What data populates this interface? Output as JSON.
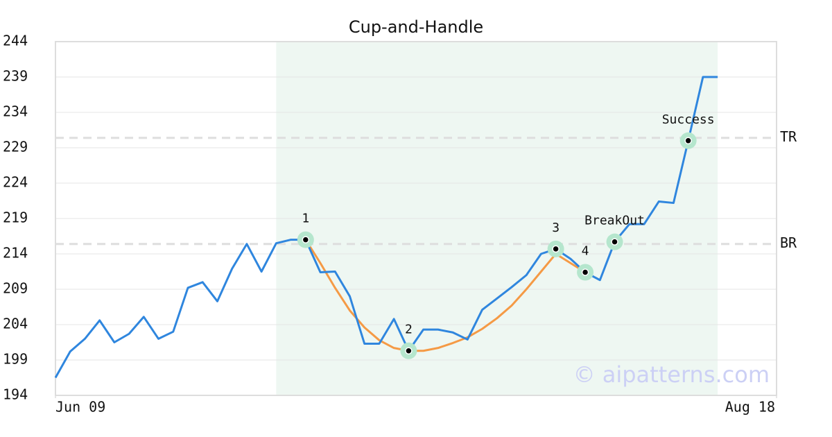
{
  "chart_data": {
    "type": "line",
    "title": "Cup-and-Handle",
    "x": [
      0,
      1,
      2,
      3,
      4,
      5,
      6,
      7,
      8,
      9,
      10,
      11,
      12,
      13,
      14,
      15,
      16,
      17,
      18,
      19,
      20,
      21,
      22,
      23,
      24,
      25,
      26,
      27,
      28,
      29,
      30,
      31,
      32,
      33,
      34,
      35,
      36,
      37,
      38,
      39,
      40,
      41,
      42,
      43,
      44,
      45
    ],
    "xlim": [
      0,
      49
    ],
    "xticks": [
      {
        "value": 0,
        "label": "Jun 09"
      },
      {
        "value": 49,
        "label": "Aug 18"
      }
    ],
    "ylim": [
      194,
      244
    ],
    "yticks": [
      194,
      199,
      204,
      209,
      214,
      219,
      224,
      229,
      234,
      239,
      244
    ],
    "grid": true,
    "series": [
      {
        "color": "#2f86de",
        "values": [
          196.5,
          200.2,
          202.0,
          204.6,
          201.5,
          202.7,
          205.1,
          202.0,
          203.0,
          209.2,
          210.0,
          207.3,
          211.9,
          215.4,
          211.5,
          215.5,
          216.0,
          216.0,
          211.4,
          211.5,
          208.0,
          201.3,
          201.3,
          204.8,
          200.3,
          203.3,
          203.3,
          202.9,
          201.9,
          206.1,
          207.7,
          209.3,
          211.0,
          214.0,
          214.7,
          213.3,
          211.4,
          210.3,
          215.7,
          218.2,
          218.2,
          221.4,
          221.2,
          230.0,
          239.0,
          239.0
        ]
      },
      {
        "color": "#f59a45",
        "values": [
          null,
          null,
          null,
          null,
          null,
          null,
          null,
          null,
          null,
          null,
          null,
          null,
          null,
          null,
          null,
          null,
          null,
          216.0,
          212.7,
          209.2,
          206.0,
          203.6,
          201.8,
          200.7,
          200.3,
          200.3,
          200.7,
          201.4,
          202.2,
          203.4,
          204.9,
          206.7,
          209.0,
          211.5,
          214.0,
          212.7,
          211.4,
          null,
          null,
          null,
          null,
          null,
          null,
          null,
          null,
          null
        ]
      }
    ],
    "highlight": [
      15,
      45
    ],
    "points": [
      {
        "x": 17,
        "y": 216.0,
        "label": "1"
      },
      {
        "x": 24,
        "y": 200.3,
        "label": "2"
      },
      {
        "x": 34,
        "y": 214.7,
        "label": "3"
      },
      {
        "x": 36,
        "y": 211.4,
        "label": "4"
      },
      {
        "x": 38,
        "y": 215.7,
        "label": "BreakOut"
      },
      {
        "x": 43,
        "y": 230.0,
        "label": "Success"
      }
    ],
    "levels": [
      {
        "value": 230.4,
        "label": "TR"
      },
      {
        "value": 215.4,
        "label": "BR"
      }
    ],
    "watermark": "© aipatterns.com"
  }
}
